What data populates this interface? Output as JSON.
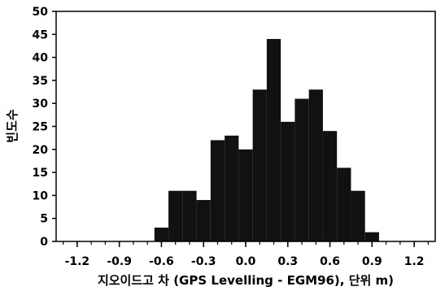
{
  "chart_data": {
    "type": "bar",
    "xlabel": "지오이드고 차 (GPS Levelling - EGM96), 단위 m)",
    "ylabel": "빈도수",
    "xlim": [
      -1.35,
      1.35
    ],
    "ylim": [
      0,
      50
    ],
    "x_ticks": [
      "-1.2",
      "-0.9",
      "-0.6",
      "-0.3",
      "0.0",
      "0.3",
      "0.6",
      "0.9",
      "1.2"
    ],
    "y_ticks": [
      "0",
      "5",
      "10",
      "15",
      "20",
      "25",
      "30",
      "35",
      "40",
      "45",
      "50"
    ],
    "bin_width": 0.1,
    "bins": [
      {
        "start": -0.65,
        "value": 3
      },
      {
        "start": -0.55,
        "value": 11
      },
      {
        "start": -0.45,
        "value": 11
      },
      {
        "start": -0.35,
        "value": 9
      },
      {
        "start": -0.25,
        "value": 22
      },
      {
        "start": -0.15,
        "value": 23
      },
      {
        "start": -0.05,
        "value": 20
      },
      {
        "start": 0.05,
        "value": 33
      },
      {
        "start": 0.15,
        "value": 44
      },
      {
        "start": 0.25,
        "value": 26
      },
      {
        "start": 0.35,
        "value": 31
      },
      {
        "start": 0.45,
        "value": 33
      },
      {
        "start": 0.55,
        "value": 24
      },
      {
        "start": 0.65,
        "value": 16
      },
      {
        "start": 0.75,
        "value": 11
      },
      {
        "start": 0.85,
        "value": 2
      }
    ],
    "bar_color": "#111111",
    "grid": false,
    "legend": "none"
  }
}
